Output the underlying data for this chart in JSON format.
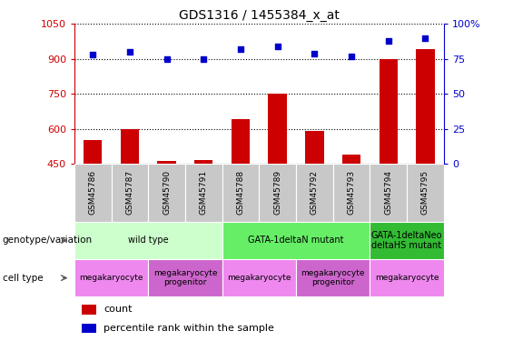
{
  "title": "GDS1316 / 1455384_x_at",
  "samples": [
    "GSM45786",
    "GSM45787",
    "GSM45790",
    "GSM45791",
    "GSM45788",
    "GSM45789",
    "GSM45792",
    "GSM45793",
    "GSM45794",
    "GSM45795"
  ],
  "bar_values": [
    550,
    600,
    460,
    465,
    640,
    750,
    590,
    490,
    900,
    940
  ],
  "dot_values": [
    78,
    80,
    75,
    75,
    82,
    84,
    79,
    77,
    88,
    90
  ],
  "ymin": 450,
  "ymax": 1050,
  "yticks": [
    450,
    600,
    750,
    900,
    1050
  ],
  "y2min": 0,
  "y2max": 100,
  "y2ticks": [
    0,
    25,
    50,
    75,
    100
  ],
  "bar_color": "#cc0000",
  "dot_color": "#0000cc",
  "grid_color": "#000000",
  "genotype_groups": [
    {
      "label": "wild type",
      "start": 0,
      "end": 4,
      "color": "#ccffcc"
    },
    {
      "label": "GATA-1deltaN mutant",
      "start": 4,
      "end": 8,
      "color": "#66ee66"
    },
    {
      "label": "GATA-1deltaNeo\ndeltaHS mutant",
      "start": 8,
      "end": 10,
      "color": "#33bb33"
    }
  ],
  "celltype_groups": [
    {
      "label": "megakaryocyte",
      "start": 0,
      "end": 2,
      "color": "#ee88ee"
    },
    {
      "label": "megakaryocyte\nprogenitor",
      "start": 2,
      "end": 4,
      "color": "#cc66cc"
    },
    {
      "label": "megakaryocyte",
      "start": 4,
      "end": 6,
      "color": "#ee88ee"
    },
    {
      "label": "megakaryocyte\nprogenitor",
      "start": 6,
      "end": 8,
      "color": "#cc66cc"
    },
    {
      "label": "megakaryocyte",
      "start": 8,
      "end": 10,
      "color": "#ee88ee"
    }
  ],
  "legend_count_color": "#cc0000",
  "legend_dot_color": "#0000cc",
  "left_label_genotype": "genotype/variation",
  "left_label_celltype": "cell type",
  "sample_box_color": "#c8c8c8"
}
